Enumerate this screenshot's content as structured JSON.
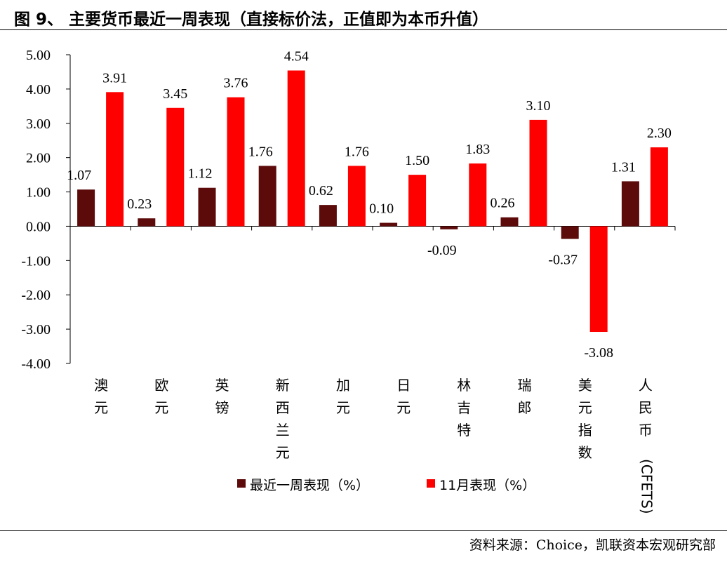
{
  "figure": {
    "title": "图 9、 主要货币最近一周表现（直接标价法，正值即为本币升值）",
    "source": "资料来源：Choice，凯联资本宏观研究部"
  },
  "chart_data": {
    "type": "bar",
    "categories": [
      "澳元",
      "欧元",
      "英镑",
      "新西兰元",
      "加元",
      "日元",
      "林吉特",
      "瑞郎",
      "美元指数",
      "人民币(CFETS)"
    ],
    "series": [
      {
        "name": "最近一周表现（%）",
        "color": "#5c0a0a",
        "values": [
          1.07,
          0.23,
          1.12,
          1.76,
          0.62,
          0.1,
          -0.09,
          0.26,
          -0.37,
          1.31
        ],
        "labels": [
          "1.07",
          "0.23",
          "1.12",
          "1.76",
          "0.62",
          "0.10",
          "-0.09",
          "0.26",
          "-0.37",
          "1.31"
        ]
      },
      {
        "name": "11月表现（%）",
        "color": "#ff0000",
        "values": [
          3.91,
          3.45,
          3.76,
          4.54,
          1.76,
          1.5,
          1.83,
          3.1,
          -3.08,
          2.3
        ],
        "labels": [
          "3.91",
          "3.45",
          "3.76",
          "4.54",
          "1.76",
          "1.50",
          "1.83",
          "3.10",
          "-3.08",
          "2.30"
        ]
      }
    ],
    "yticks": [
      "5.00",
      "4.00",
      "3.00",
      "2.00",
      "1.00",
      "0.00",
      "-1.00",
      "-2.00",
      "-3.00",
      "-4.00"
    ],
    "ylim": [
      -4,
      5
    ],
    "grid": false,
    "legend_position": "bottom"
  }
}
